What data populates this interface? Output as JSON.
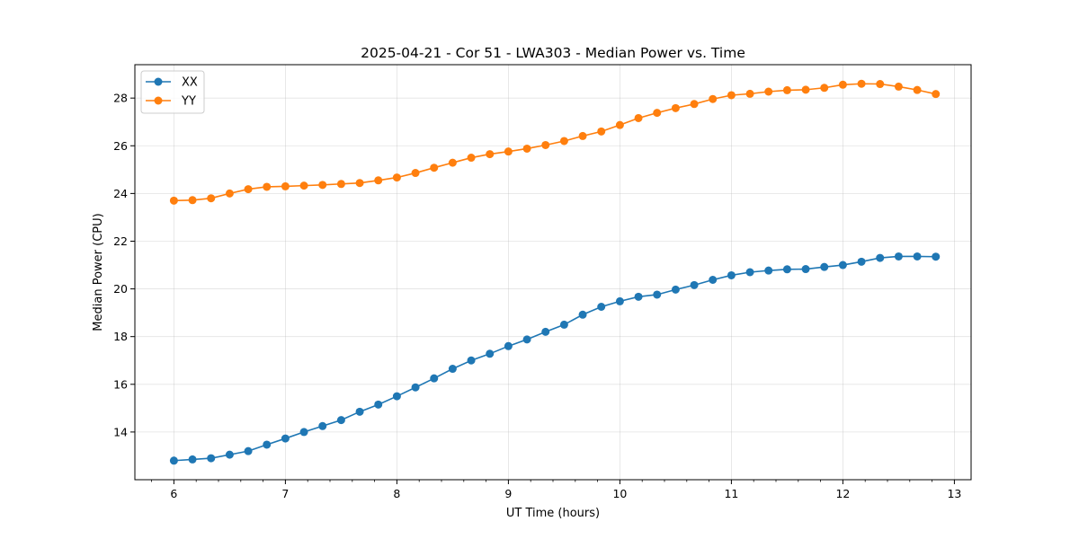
{
  "chart_data": {
    "type": "line",
    "title": "2025-04-21 - Cor 51 - LWA303 - Median Power vs. Time",
    "xlabel": "UT Time (hours)",
    "ylabel": "Median Power (CPU)",
    "xlim": [
      5.65,
      13.15
    ],
    "ylim": [
      12.0,
      29.4
    ],
    "xticks": [
      6,
      7,
      8,
      9,
      10,
      11,
      12,
      13
    ],
    "xtick_labels": [
      "6",
      "7",
      "8",
      "9",
      "10",
      "11",
      "12",
      "13"
    ],
    "yticks": [
      14,
      16,
      18,
      20,
      22,
      24,
      26,
      28
    ],
    "ytick_labels": [
      "14",
      "16",
      "18",
      "20",
      "22",
      "24",
      "26",
      "28"
    ],
    "grid": true,
    "legend_position": "top-left",
    "x": [
      6.0,
      6.1667,
      6.3333,
      6.5,
      6.6667,
      6.8333,
      7.0,
      7.1667,
      7.3333,
      7.5,
      7.6667,
      7.8333,
      8.0,
      8.1667,
      8.3333,
      8.5,
      8.6667,
      8.8333,
      9.0,
      9.1667,
      9.3333,
      9.5,
      9.6667,
      9.8333,
      10.0,
      10.1667,
      10.3333,
      10.5,
      10.6667,
      10.8333,
      11.0,
      11.1667,
      11.3333,
      11.5,
      11.6667,
      11.8333,
      12.0,
      12.1667,
      12.3333,
      12.5,
      12.6667,
      12.8333
    ],
    "series": [
      {
        "name": "XX",
        "color": "#1f77b4",
        "values": [
          12.8,
          12.85,
          12.9,
          13.05,
          13.2,
          13.47,
          13.73,
          14.0,
          14.25,
          14.5,
          14.85,
          15.15,
          15.5,
          15.87,
          16.25,
          16.65,
          17.0,
          17.28,
          17.6,
          17.88,
          18.2,
          18.5,
          18.92,
          19.25,
          19.48,
          19.67,
          19.76,
          19.97,
          20.16,
          20.38,
          20.57,
          20.7,
          20.77,
          20.82,
          20.83,
          20.92,
          21.0,
          21.14,
          21.3,
          21.36,
          21.36,
          21.35
        ]
      },
      {
        "name": "YY",
        "color": "#ff7f0e",
        "values": [
          23.7,
          23.72,
          23.8,
          24.0,
          24.18,
          24.28,
          24.3,
          24.33,
          24.36,
          24.4,
          24.44,
          24.55,
          24.67,
          24.86,
          25.08,
          25.29,
          25.5,
          25.65,
          25.76,
          25.88,
          26.03,
          26.2,
          26.41,
          26.6,
          26.87,
          27.16,
          27.38,
          27.58,
          27.75,
          27.96,
          28.12,
          28.18,
          28.27,
          28.33,
          28.35,
          28.43,
          28.56,
          28.6,
          28.59,
          28.48,
          28.34,
          28.17
        ]
      }
    ]
  }
}
